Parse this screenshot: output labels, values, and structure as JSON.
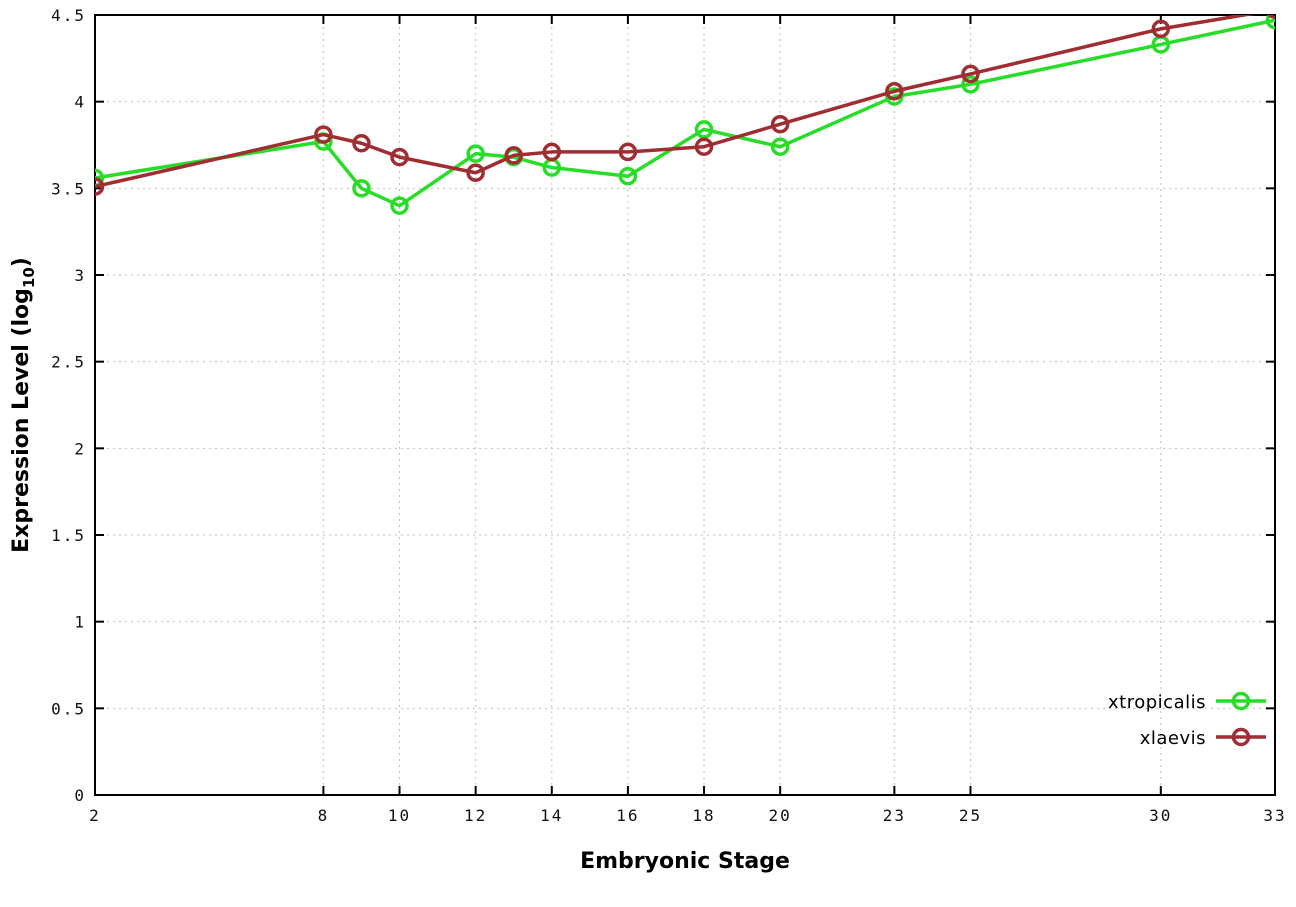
{
  "chart_data": {
    "type": "line",
    "title": "",
    "xlabel": "Embryonic Stage",
    "ylabel": "Expression Level (log10)",
    "ylabel_parts": {
      "main": "Expression Level (log",
      "sub": "10",
      "end": ")"
    },
    "xlim": [
      2,
      33
    ],
    "ylim": [
      0,
      4.5
    ],
    "grid": true,
    "grid_color": "#bfbfbf",
    "border_color": "#000000",
    "legend_position": "bottom-right",
    "x_ticks": [
      2,
      8,
      10,
      12,
      14,
      16,
      18,
      20,
      23,
      25,
      30,
      33
    ],
    "x_tick_labels": [
      "2",
      "8",
      "10",
      "12",
      "14",
      "16",
      "18",
      "20",
      "23",
      "25",
      "30",
      "33"
    ],
    "y_ticks": [
      0,
      0.5,
      1,
      1.5,
      2,
      2.5,
      3,
      3.5,
      4,
      4.5
    ],
    "y_tick_labels": [
      "0",
      "0.5",
      "1",
      "1.5",
      "2",
      "2.5",
      "3",
      "3.5",
      "4",
      "4.5"
    ],
    "x": [
      2,
      8,
      9,
      10,
      12,
      13,
      14,
      16,
      18,
      20,
      23,
      25,
      30,
      33
    ],
    "series": [
      {
        "name": "xtropicalis",
        "color": "#27dd27",
        "values": [
          3.56,
          3.77,
          3.5,
          3.4,
          3.7,
          3.68,
          3.62,
          3.57,
          3.84,
          3.74,
          4.03,
          4.1,
          4.33,
          4.47
        ]
      },
      {
        "name": "xlaevis",
        "color": "#a02d32",
        "values": [
          3.51,
          3.81,
          3.76,
          3.68,
          3.59,
          3.69,
          3.71,
          3.71,
          3.74,
          3.87,
          4.06,
          4.16,
          4.42,
          4.53
        ]
      }
    ]
  }
}
